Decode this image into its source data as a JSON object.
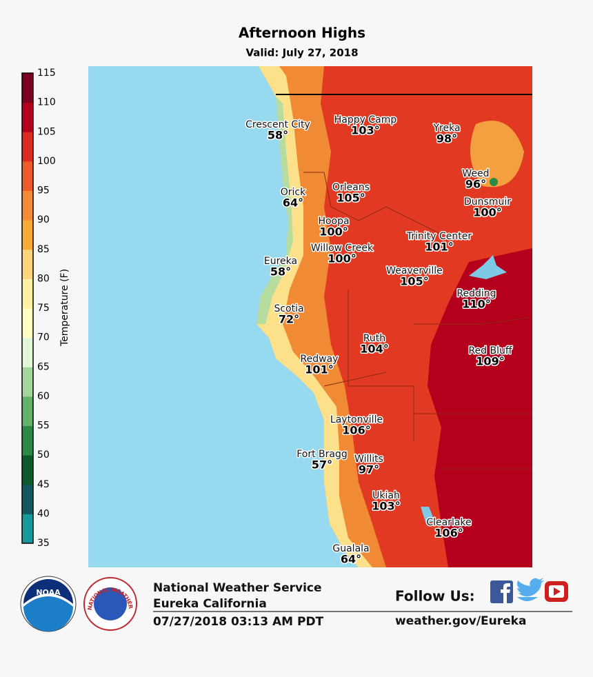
{
  "header": {
    "title": "Afternoon Highs",
    "subtitle": "Valid: July 27, 2018"
  },
  "colorbar": {
    "label": "Temperature (F)",
    "ticks": [
      35,
      40,
      45,
      50,
      55,
      60,
      65,
      70,
      75,
      80,
      85,
      90,
      95,
      100,
      105,
      110,
      115
    ],
    "colors": [
      "#15999a",
      "#12585e",
      "#0a5a2c",
      "#2b8a45",
      "#62b26c",
      "#a3d69c",
      "#e2f6d8",
      "#ffffc4",
      "#fff0a3",
      "#fed47c",
      "#fbab33",
      "#f58b37",
      "#ee5b2b",
      "#dc2b20",
      "#b4001d",
      "#7b0022"
    ]
  },
  "cities": [
    {
      "name": "Crescent City",
      "temp": "58°"
    },
    {
      "name": "Happy Camp",
      "temp": "103°"
    },
    {
      "name": "Yreka",
      "temp": "98°"
    },
    {
      "name": "Weed",
      "temp": "96°"
    },
    {
      "name": "Orick",
      "temp": "64°"
    },
    {
      "name": "Orleans",
      "temp": "105°"
    },
    {
      "name": "Dunsmuir",
      "temp": "100°"
    },
    {
      "name": "Hoopa",
      "temp": "100°"
    },
    {
      "name": "Trinity Center",
      "temp": "101°"
    },
    {
      "name": "Willow Creek",
      "temp": "100°"
    },
    {
      "name": "Eureka",
      "temp": "58°"
    },
    {
      "name": "Weaverville",
      "temp": "105°"
    },
    {
      "name": "Redding",
      "temp": "110°"
    },
    {
      "name": "Scotia",
      "temp": "72°"
    },
    {
      "name": "Ruth",
      "temp": "104°"
    },
    {
      "name": "Red Bluff",
      "temp": "109°"
    },
    {
      "name": "Redway",
      "temp": "101°"
    },
    {
      "name": "Laytonville",
      "temp": "106°"
    },
    {
      "name": "Fort Bragg",
      "temp": "57°"
    },
    {
      "name": "Willits",
      "temp": "97°"
    },
    {
      "name": "Ukiah",
      "temp": "103°"
    },
    {
      "name": "Clearlake",
      "temp": "106°"
    },
    {
      "name": "Gualala",
      "temp": "64°"
    }
  ],
  "footer": {
    "office": "National Weather Service",
    "location": "Eureka California",
    "issued": "07/27/2018 03:13 AM PDT",
    "follow": "Follow Us:",
    "website": "weather.gov/Eureka",
    "noaa_logo": "NOAA",
    "nws_logo": "NATIONAL WEATHER SERVICE"
  }
}
